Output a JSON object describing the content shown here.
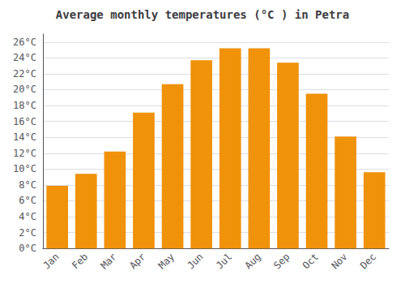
{
  "chart_data": {
    "type": "bar",
    "title": "Average monthly temperatures (°C ) in Petra",
    "categories": [
      "Jan",
      "Feb",
      "Mar",
      "Apr",
      "May",
      "Jun",
      "Jul",
      "Aug",
      "Sep",
      "Oct",
      "Nov",
      "Dec"
    ],
    "values": [
      7.9,
      9.4,
      12.2,
      17.1,
      20.7,
      23.7,
      25.2,
      25.2,
      23.4,
      19.5,
      14.1,
      9.6
    ],
    "color": "#F0920A",
    "ylim": [
      0,
      27
    ],
    "yticks": [
      {
        "value": 0,
        "label": "0°C"
      },
      {
        "value": 2,
        "label": "2°C"
      },
      {
        "value": 4,
        "label": "4°C"
      },
      {
        "value": 6,
        "label": "6°C"
      },
      {
        "value": 8,
        "label": "8°C"
      },
      {
        "value": 10,
        "label": "10°C"
      },
      {
        "value": 12,
        "label": "12°C"
      },
      {
        "value": 14,
        "label": "14°C"
      },
      {
        "value": 16,
        "label": "16°C"
      },
      {
        "value": 18,
        "label": "18°C"
      },
      {
        "value": 20,
        "label": "20°C"
      },
      {
        "value": 22,
        "label": "22°C"
      },
      {
        "value": 24,
        "label": "24°C"
      },
      {
        "value": 26,
        "label": "26°C"
      }
    ],
    "grid": true
  }
}
